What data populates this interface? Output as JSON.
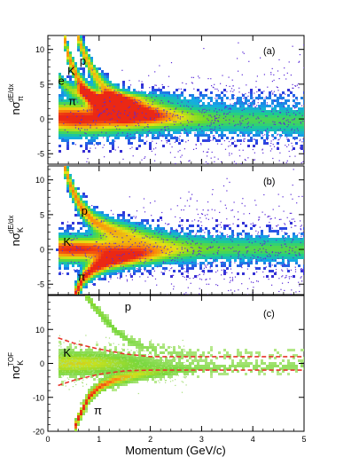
{
  "figure": {
    "x_axis_label": "Momentum (GeV/c)",
    "x_ticks": [
      0,
      1,
      2,
      3,
      4,
      5
    ]
  },
  "chart_data": [
    {
      "type": "heatmap",
      "panel_label": "(a)",
      "ylabel": "nσπ dE/dx",
      "ylabel_parts": {
        "main": "nσ",
        "sub": "π",
        "sup": "dE/dx"
      },
      "xlim": [
        0,
        5
      ],
      "ylim": [
        -6.5,
        12
      ],
      "y_ticks": [
        -5,
        0,
        5,
        10
      ],
      "annotations": [
        {
          "text": "p",
          "x": 0.62,
          "y": 7.8
        },
        {
          "text": "K",
          "x": 0.38,
          "y": 6.3
        },
        {
          "text": "e",
          "x": 0.2,
          "y": 4.9
        },
        {
          "text": "π",
          "x": 0.4,
          "y": 2.0
        }
      ],
      "bands": [
        {
          "name": "π",
          "curve": [
            [
              0.2,
              0.2
            ],
            [
              0.5,
              0.1
            ],
            [
              1.0,
              0.0
            ],
            [
              2,
              0
            ],
            [
              3,
              0
            ],
            [
              4,
              0
            ],
            [
              5,
              0
            ]
          ],
          "width": [
            1.6,
            1.4
          ],
          "strength": 1.0
        },
        {
          "name": "e",
          "curve": [
            [
              0.2,
              6.0
            ],
            [
              0.3,
              5.0
            ],
            [
              0.5,
              4.0
            ],
            [
              1.0,
              3.0
            ]
          ],
          "width": [
            0.7,
            0.5
          ],
          "strength": 0.55
        },
        {
          "name": "K",
          "curve": [
            [
              0.3,
              12.5
            ],
            [
              0.4,
              9.0
            ],
            [
              0.6,
              5.5
            ],
            [
              0.8,
              3.5
            ],
            [
              1.0,
              2.2
            ],
            [
              1.5,
              0.8
            ],
            [
              2.5,
              0.1
            ],
            [
              3.5,
              -0.3
            ],
            [
              5,
              -0.5
            ]
          ],
          "width": [
            0.9,
            1.5
          ],
          "strength": 0.85
        },
        {
          "name": "p",
          "curve": [
            [
              0.55,
              12.5
            ],
            [
              0.7,
              9.5
            ],
            [
              0.9,
              6.5
            ],
            [
              1.1,
              4.5
            ],
            [
              1.5,
              2.5
            ],
            [
              2,
              1.2
            ],
            [
              3,
              0.3
            ],
            [
              4,
              -0.2
            ],
            [
              5,
              -0.6
            ]
          ],
          "width": [
            0.8,
            1.6
          ],
          "strength": 0.8
        }
      ]
    },
    {
      "type": "heatmap",
      "panel_label": "(b)",
      "ylabel": "nσK dE/dx",
      "ylabel_parts": {
        "main": "nσ",
        "sub": "K",
        "sup": "dE/dx"
      },
      "xlim": [
        0,
        5
      ],
      "ylim": [
        -6.5,
        12
      ],
      "y_ticks": [
        -5,
        0,
        5,
        10
      ],
      "annotations": [
        {
          "text": "p",
          "x": 0.65,
          "y": 5.0
        },
        {
          "text": "K",
          "x": 0.3,
          "y": 0.5
        },
        {
          "text": "π",
          "x": 0.58,
          "y": -4.5
        }
      ],
      "bands": [
        {
          "name": "K",
          "curve": [
            [
              0.2,
              0.0
            ],
            [
              0.5,
              0.0
            ],
            [
              1,
              0
            ],
            [
              2,
              0
            ],
            [
              3,
              0
            ],
            [
              4,
              0
            ],
            [
              5,
              0
            ]
          ],
          "width": [
            1.3,
            1.3
          ],
          "strength": 0.95
        },
        {
          "name": "p",
          "curve": [
            [
              0.3,
              12.5
            ],
            [
              0.45,
              9.0
            ],
            [
              0.65,
              6.0
            ],
            [
              0.9,
              4.0
            ],
            [
              1.2,
              3.0
            ],
            [
              1.8,
              2.0
            ],
            [
              2.5,
              1.2
            ],
            [
              3.5,
              0.6
            ],
            [
              5,
              0.2
            ]
          ],
          "width": [
            0.9,
            1.4
          ],
          "strength": 0.85
        },
        {
          "name": "π",
          "curve": [
            [
              0.5,
              -7.0
            ],
            [
              0.7,
              -4.0
            ],
            [
              0.9,
              -2.8
            ],
            [
              1.2,
              -1.8
            ],
            [
              1.8,
              -1.0
            ],
            [
              2.5,
              -0.5
            ],
            [
              3.5,
              -0.2
            ],
            [
              5,
              0.0
            ]
          ],
          "width": [
            0.8,
            1.2
          ],
          "strength": 1.0
        }
      ]
    },
    {
      "type": "heatmap",
      "panel_label": "(c)",
      "ylabel": "nσK TOF",
      "ylabel_parts": {
        "main": "nσ",
        "sub": "K",
        "sup": "TOF"
      },
      "xlim": [
        0,
        5
      ],
      "ylim": [
        -20,
        20
      ],
      "y_ticks": [
        -20,
        -10,
        0,
        10
      ],
      "annotations": [
        {
          "text": "p",
          "x": 1.5,
          "y": 15.5
        },
        {
          "text": "K",
          "x": 0.3,
          "y": 2.0
        },
        {
          "text": "π",
          "x": 0.9,
          "y": -15.0
        }
      ],
      "bands": [
        {
          "name": "K",
          "curve": [
            [
              0.2,
              0
            ],
            [
              0.6,
              0
            ],
            [
              1,
              0
            ],
            [
              1.5,
              0
            ],
            [
              2,
              0
            ],
            [
              3,
              0
            ],
            [
              4,
              0
            ],
            [
              5,
              0
            ]
          ],
          "width": [
            2.6,
            1.4
          ],
          "strength": 0.7
        },
        {
          "name": "p",
          "curve": [
            [
              0.75,
              20
            ],
            [
              1.0,
              15
            ],
            [
              1.3,
              10
            ],
            [
              1.6,
              6.5
            ],
            [
              2.0,
              4.5
            ],
            [
              2.5,
              3.2
            ]
          ],
          "width": [
            0.9,
            1.0
          ],
          "strength": 0.5
        },
        {
          "name": "π",
          "curve": [
            [
              0.5,
              -20
            ],
            [
              0.6,
              -16
            ],
            [
              0.8,
              -10
            ],
            [
              1.0,
              -7
            ],
            [
              1.3,
              -5
            ],
            [
              1.8,
              -3.3
            ],
            [
              2.5,
              -2.2
            ],
            [
              3.5,
              -1.6
            ],
            [
              5,
              -1.2
            ]
          ],
          "width": [
            1.2,
            1.0
          ],
          "strength": 1.0
        }
      ],
      "cut_lines": {
        "color": "#e8332a",
        "style": "dashed",
        "upper": [
          [
            0.2,
            7.5
          ],
          [
            0.5,
            6.0
          ],
          [
            1.0,
            4.2
          ],
          [
            1.5,
            2.8
          ],
          [
            2.0,
            2.0
          ],
          [
            3,
            2.0
          ],
          [
            4,
            2.0
          ],
          [
            5,
            2.0
          ]
        ],
        "lower": [
          [
            0.2,
            -6.5
          ],
          [
            0.5,
            -5.0
          ],
          [
            1.0,
            -3.2
          ],
          [
            1.5,
            -2.2
          ],
          [
            2.0,
            -2.0
          ],
          [
            3,
            -2.0
          ],
          [
            4,
            -2.0
          ],
          [
            5,
            -2.0
          ]
        ]
      }
    }
  ]
}
